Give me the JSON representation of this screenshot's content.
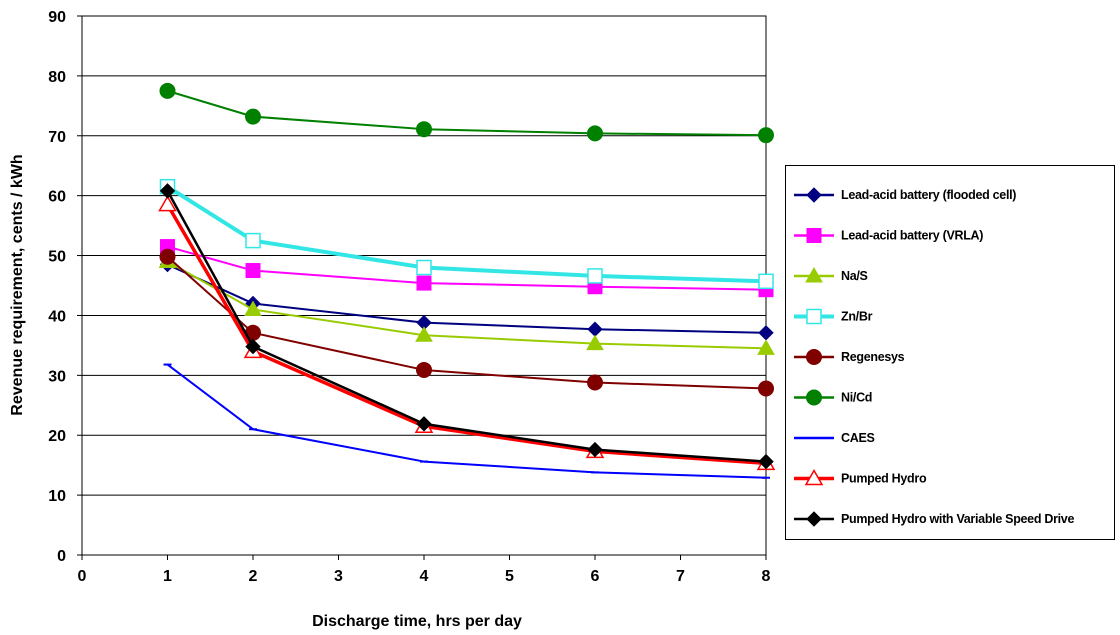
{
  "chart_data": {
    "type": "line",
    "title": "",
    "xlabel": "Discharge time, hrs per day",
    "ylabel": "Revenue requirement, cents / kWh",
    "xlim": [
      0,
      8
    ],
    "ylim": [
      0,
      90
    ],
    "xticks": [
      0,
      1,
      2,
      3,
      4,
      5,
      6,
      7,
      8
    ],
    "yticks": [
      0,
      10,
      20,
      30,
      40,
      50,
      60,
      70,
      80,
      90
    ],
    "grid": "horizontal",
    "legend_position": "right",
    "x": [
      1,
      2,
      4,
      6,
      8
    ],
    "series": [
      {
        "name": "Lead-acid battery (flooded cell)",
        "color": "#000080",
        "marker": "diamond",
        "values": [
          48.5,
          42.0,
          38.8,
          37.7,
          37.1
        ]
      },
      {
        "name": "Lead-acid battery (VRLA)",
        "color": "#FF00FF",
        "marker": "square",
        "values": [
          51.5,
          47.5,
          45.4,
          44.8,
          44.3
        ]
      },
      {
        "name": "Na/S",
        "color": "#99CC00",
        "marker": "triangle",
        "values": [
          49.0,
          41.0,
          36.7,
          35.3,
          34.5
        ]
      },
      {
        "name": "Zn/Br",
        "color": "#33E6E6",
        "marker": "square-open",
        "values": [
          61.5,
          52.5,
          48.0,
          46.6,
          45.7
        ]
      },
      {
        "name": "Regenesys",
        "color": "#800000",
        "marker": "circle",
        "values": [
          49.8,
          37.1,
          30.9,
          28.8,
          27.8
        ]
      },
      {
        "name": "Ni/Cd",
        "color": "#008000",
        "marker": "circle",
        "values": [
          77.5,
          73.2,
          71.1,
          70.4,
          70.1
        ]
      },
      {
        "name": "CAES",
        "color": "#0000FF",
        "marker": "dash",
        "values": [
          31.8,
          21.0,
          15.6,
          13.8,
          12.9
        ]
      },
      {
        "name": "Pumped Hydro",
        "color": "#FF0000",
        "marker": "triangle-open",
        "values": [
          58.5,
          34.0,
          21.5,
          17.3,
          15.3
        ]
      },
      {
        "name": "Pumped Hydro with Variable Speed Drive",
        "color": "#000000",
        "marker": "diamond",
        "values": [
          60.8,
          34.8,
          21.9,
          17.6,
          15.6
        ]
      }
    ]
  }
}
